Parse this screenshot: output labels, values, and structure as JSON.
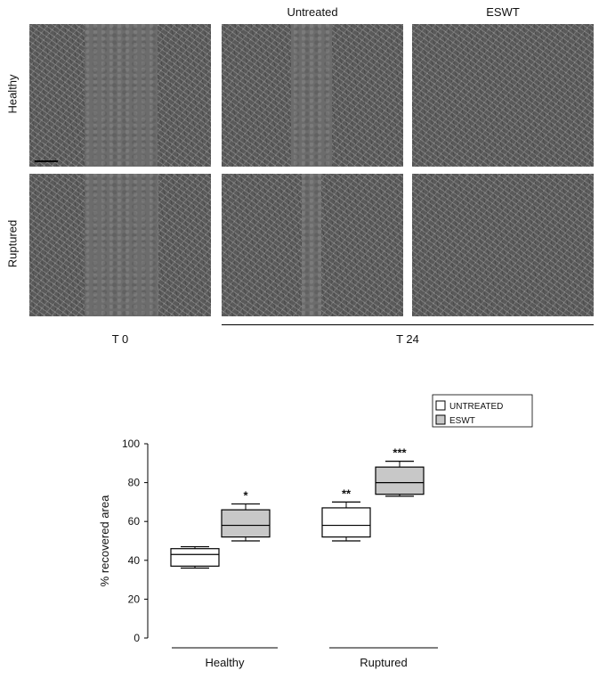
{
  "figure": {
    "col_headers": [
      "Untreated",
      "ESWT"
    ],
    "row_labels": [
      "Healthy",
      "Ruptured"
    ],
    "time_labels": [
      "T 0",
      "T 24"
    ]
  },
  "chart_data": {
    "type": "box",
    "ylabel": "% recovered area",
    "ylim": [
      0,
      100
    ],
    "yticks": [
      0,
      20,
      40,
      60,
      80,
      100
    ],
    "categories": [
      "Healthy",
      "Ruptured"
    ],
    "legend": {
      "position": "top-right",
      "entries": [
        "UNTREATED",
        "ESWT"
      ]
    },
    "series": [
      {
        "name": "UNTREATED",
        "color": "#ffffff",
        "boxes": [
          {
            "group": "Healthy",
            "min": 36,
            "q1": 37,
            "median": 43,
            "q3": 46,
            "max": 47,
            "annotation": ""
          },
          {
            "group": "Ruptured",
            "min": 50,
            "q1": 52,
            "median": 58,
            "q3": 67,
            "max": 70,
            "annotation": "**"
          }
        ]
      },
      {
        "name": "ESWT",
        "color": "#c8c8c8",
        "boxes": [
          {
            "group": "Healthy",
            "min": 50,
            "q1": 52,
            "median": 58,
            "q3": 66,
            "max": 69,
            "annotation": "*"
          },
          {
            "group": "Ruptured",
            "min": 73,
            "q1": 74,
            "median": 80,
            "q3": 88,
            "max": 91,
            "annotation": "***"
          }
        ]
      }
    ]
  }
}
